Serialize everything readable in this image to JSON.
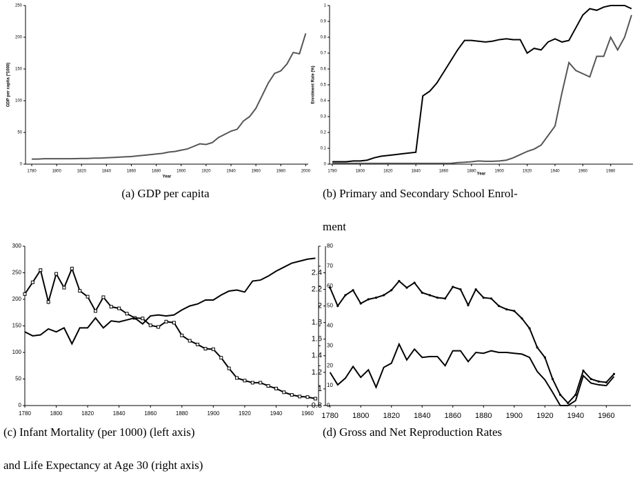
{
  "chart_data": [
    {
      "type": "line",
      "caption": [
        "(a) GDP per capita"
      ],
      "x_label": "Year",
      "y_label": "GDP per capita (*1000)",
      "x": [
        1780,
        1785,
        1790,
        1795,
        1800,
        1805,
        1810,
        1815,
        1820,
        1825,
        1830,
        1835,
        1840,
        1845,
        1850,
        1855,
        1860,
        1865,
        1870,
        1875,
        1880,
        1885,
        1890,
        1895,
        1900,
        1905,
        1910,
        1915,
        1920,
        1925,
        1930,
        1935,
        1940,
        1945,
        1950,
        1955,
        1960,
        1965,
        1970,
        1975,
        1980,
        1985,
        1990,
        1995,
        2000
      ],
      "series": [
        {
          "color": "#555555",
          "values": [
            8,
            8,
            8.5,
            8.5,
            8.5,
            8.5,
            8.5,
            8.7,
            9,
            9,
            9.5,
            9.5,
            10,
            10.5,
            11,
            11.5,
            12,
            13,
            14,
            15,
            16,
            17,
            19,
            20,
            22,
            24,
            28,
            32,
            31,
            34,
            42,
            47,
            52,
            55,
            68,
            75,
            88,
            108,
            128,
            143,
            147,
            158,
            176,
            174,
            206
          ]
        }
      ],
      "xlim": [
        1775,
        2002
      ],
      "ylim": [
        0,
        250
      ],
      "xticks": [
        1780,
        1800,
        1820,
        1840,
        1860,
        1880,
        1900,
        1920,
        1940,
        1960,
        1980,
        2000
      ],
      "yticks": [
        0,
        50,
        100,
        150,
        200,
        250
      ]
    },
    {
      "type": "line",
      "caption": [
        "(b) Primary and Secondary School Enrol-",
        "ment"
      ],
      "x_label": "Year",
      "y_label": "Enrolment Rate (%)",
      "x": [
        1780,
        1785,
        1790,
        1795,
        1800,
        1805,
        1810,
        1815,
        1820,
        1825,
        1830,
        1835,
        1840,
        1845,
        1850,
        1855,
        1860,
        1865,
        1870,
        1875,
        1880,
        1885,
        1890,
        1895,
        1900,
        1905,
        1910,
        1915,
        1920,
        1925,
        1930,
        1935,
        1940,
        1945,
        1950,
        1955,
        1960,
        1965,
        1970,
        1975,
        1980,
        1985,
        1990,
        1995
      ],
      "series": [
        {
          "color": "#000000",
          "values": [
            0.015,
            0.015,
            0.015,
            0.02,
            0.02,
            0.025,
            0.04,
            0.05,
            0.055,
            0.06,
            0.065,
            0.07,
            0.075,
            0.43,
            0.46,
            0.51,
            0.58,
            0.65,
            0.72,
            0.78,
            0.78,
            0.775,
            0.77,
            0.775,
            0.785,
            0.79,
            0.785,
            0.785,
            0.7,
            0.73,
            0.72,
            0.77,
            0.79,
            0.77,
            0.78,
            0.86,
            0.94,
            0.98,
            0.97,
            0.99,
            1,
            1,
            1,
            0.98
          ]
        },
        {
          "color": "#555555",
          "values": [
            0.005,
            0.005,
            0.005,
            0.005,
            0.005,
            0.005,
            0.005,
            0.005,
            0.005,
            0.005,
            0.005,
            0.005,
            0.005,
            0.005,
            0.005,
            0.005,
            0.005,
            0.005,
            0.01,
            0.012,
            0.015,
            0.02,
            0.018,
            0.018,
            0.02,
            0.025,
            0.04,
            0.06,
            0.08,
            0.095,
            0.12,
            0.18,
            0.24,
            0.45,
            0.64,
            0.59,
            0.57,
            0.55,
            0.68,
            0.68,
            0.8,
            0.72,
            0.8,
            0.94
          ]
        }
      ],
      "xlim": [
        1778,
        1996
      ],
      "ylim": [
        0,
        1
      ],
      "xticks": [
        1780,
        1800,
        1820,
        1840,
        1860,
        1880,
        1900,
        1920,
        1940,
        1960,
        1980
      ],
      "yticks": [
        0,
        0.1,
        0.2,
        0.3,
        0.4,
        0.5,
        0.6,
        0.7,
        0.8,
        0.9,
        1
      ]
    },
    {
      "type": "line",
      "caption": [
        "(c) Infant Mortality (per 1000) (left axis)",
        "and Life Expectancy at Age 30 (right axis)"
      ],
      "x": [
        1780,
        1785,
        1790,
        1795,
        1800,
        1805,
        1810,
        1815,
        1820,
        1825,
        1830,
        1835,
        1840,
        1845,
        1850,
        1855,
        1860,
        1865,
        1870,
        1875,
        1880,
        1885,
        1890,
        1895,
        1900,
        1905,
        1910,
        1915,
        1920,
        1925,
        1930,
        1935,
        1940,
        1945,
        1950,
        1955,
        1960,
        1965
      ],
      "series": [
        {
          "color": "#000000",
          "marker": "square",
          "values": [
            210,
            232,
            255,
            195,
            248,
            222,
            258,
            216,
            205,
            178,
            204,
            186,
            183,
            173,
            165,
            164,
            151,
            148,
            158,
            156,
            132,
            122,
            115,
            107,
            106,
            90,
            70,
            52,
            47,
            43,
            43,
            37,
            32,
            25,
            20,
            17,
            16,
            13
          ]
        },
        {
          "color": "#000000",
          "axis": "y2",
          "values": [
            37,
            35,
            35.5,
            38.5,
            37,
            39,
            31,
            39,
            39,
            44,
            39,
            42.5,
            42,
            43,
            44,
            41,
            45,
            45.5,
            45,
            45.5,
            48,
            50,
            51,
            53,
            53,
            55.5,
            57.5,
            58,
            57,
            62.5,
            63,
            65,
            67.5,
            69.5,
            71.5,
            72.5,
            73.5,
            74
          ]
        }
      ],
      "xlim": [
        1780,
        1967
      ],
      "ylim": [
        0,
        300
      ],
      "y2lim": [
        0,
        80
      ],
      "xticks": [
        1780,
        1800,
        1820,
        1840,
        1860,
        1880,
        1900,
        1920,
        1940,
        1960
      ],
      "yticks": [
        0,
        50,
        100,
        150,
        200,
        250,
        300
      ],
      "y2ticks": [
        0,
        10,
        20,
        30,
        40,
        50,
        60,
        70,
        80
      ]
    },
    {
      "type": "line",
      "caption": [
        "(d) Gross and Net Reproduction Rates"
      ],
      "x": [
        1780,
        1785,
        1790,
        1795,
        1800,
        1805,
        1810,
        1815,
        1820,
        1825,
        1830,
        1835,
        1840,
        1845,
        1850,
        1855,
        1860,
        1865,
        1870,
        1875,
        1880,
        1885,
        1890,
        1895,
        1900,
        1905,
        1910,
        1915,
        1920,
        1925,
        1930,
        1935,
        1940,
        1945,
        1950,
        1955,
        1960,
        1965
      ],
      "series": [
        {
          "color": "#000000",
          "marker": "dot",
          "values": [
            2.22,
            2.0,
            2.13,
            2.19,
            2.03,
            2.08,
            2.1,
            2.13,
            2.19,
            2.3,
            2.22,
            2.28,
            2.16,
            2.13,
            2.1,
            2.09,
            2.23,
            2.2,
            2.01,
            2.2,
            2.1,
            2.09,
            2.0,
            1.96,
            1.94,
            1.85,
            1.73,
            1.5,
            1.38,
            1.12,
            0.93,
            0.83,
            0.93,
            1.22,
            1.12,
            1.09,
            1.08,
            1.18
          ]
        },
        {
          "color": "#000000",
          "values": [
            1.2,
            1.05,
            1.13,
            1.27,
            1.14,
            1.23,
            1.02,
            1.26,
            1.31,
            1.54,
            1.35,
            1.48,
            1.38,
            1.39,
            1.39,
            1.28,
            1.46,
            1.46,
            1.33,
            1.44,
            1.43,
            1.46,
            1.44,
            1.44,
            1.43,
            1.42,
            1.38,
            1.21,
            1.11,
            0.96,
            0.8,
            0.8,
            0.86,
            1.16,
            1.07,
            1.05,
            1.04,
            1.15
          ]
        }
      ],
      "xlim": [
        1777,
        1976
      ],
      "ylim": [
        0.8,
        2.72
      ],
      "xticks": [
        1780,
        1800,
        1820,
        1840,
        1860,
        1880,
        1900,
        1920,
        1940,
        1960
      ],
      "yticks": [
        0.8,
        1,
        1.2,
        1.4,
        1.6,
        1.8,
        2,
        2.2,
        2.4
      ]
    }
  ]
}
